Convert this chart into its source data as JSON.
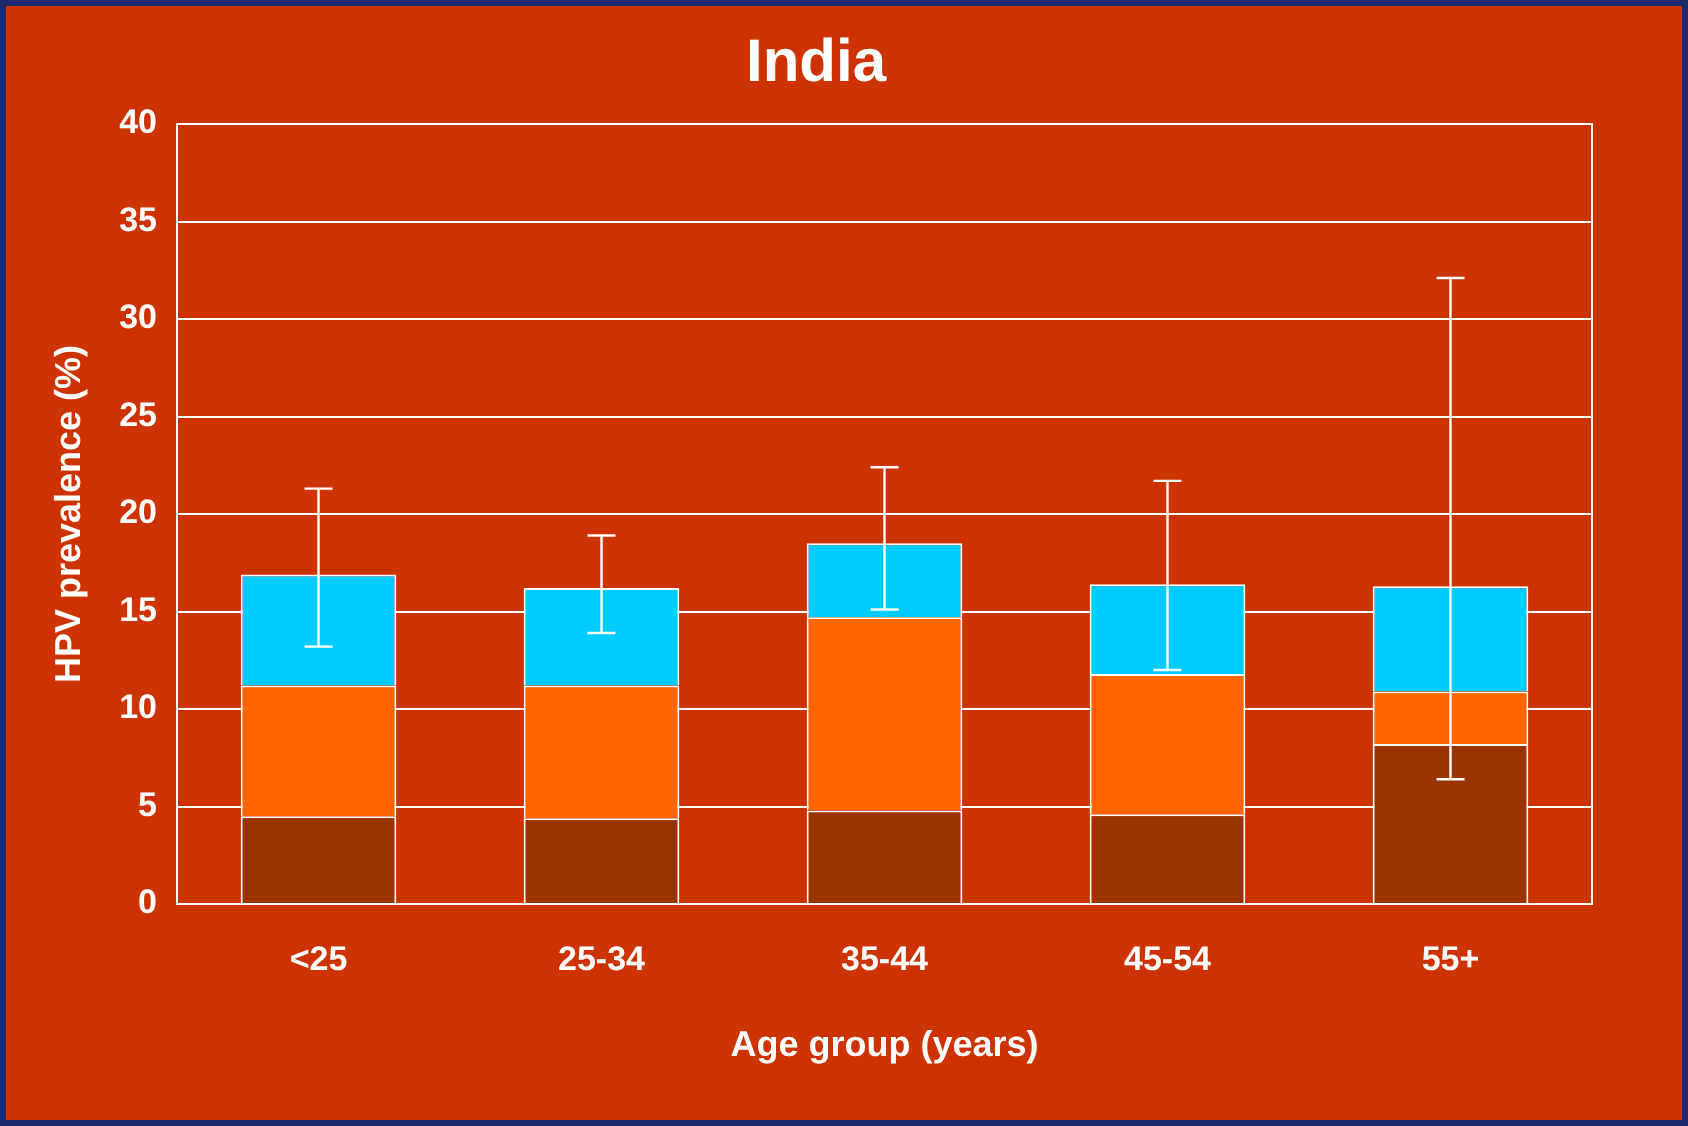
{
  "chart_data": {
    "type": "bar",
    "title": "India",
    "xlabel": "Age group (years)",
    "ylabel": "HPV prevalence (%)",
    "categories": [
      "<25",
      "25-34",
      "35-44",
      "45-54",
      "55+"
    ],
    "stacked": true,
    "series": [
      {
        "color": "#993300",
        "values": [
          4.5,
          4.4,
          4.8,
          4.6,
          8.2
        ]
      },
      {
        "color": "#ff6600",
        "values": [
          6.7,
          6.8,
          9.9,
          7.2,
          2.7
        ]
      },
      {
        "color": "#00ccff",
        "values": [
          5.7,
          5.0,
          3.8,
          4.6,
          5.4
        ],
        "errors": [
          [
            13.2,
            21.3
          ],
          [
            13.9,
            18.9
          ],
          [
            15.1,
            22.4
          ],
          [
            12.0,
            21.7
          ],
          [
            6.4,
            32.1
          ]
        ]
      }
    ],
    "ylim": [
      0,
      40
    ],
    "yticks": [
      0,
      5,
      10,
      15,
      20,
      25,
      30,
      35,
      40
    ],
    "grid": "y",
    "legend": false
  }
}
